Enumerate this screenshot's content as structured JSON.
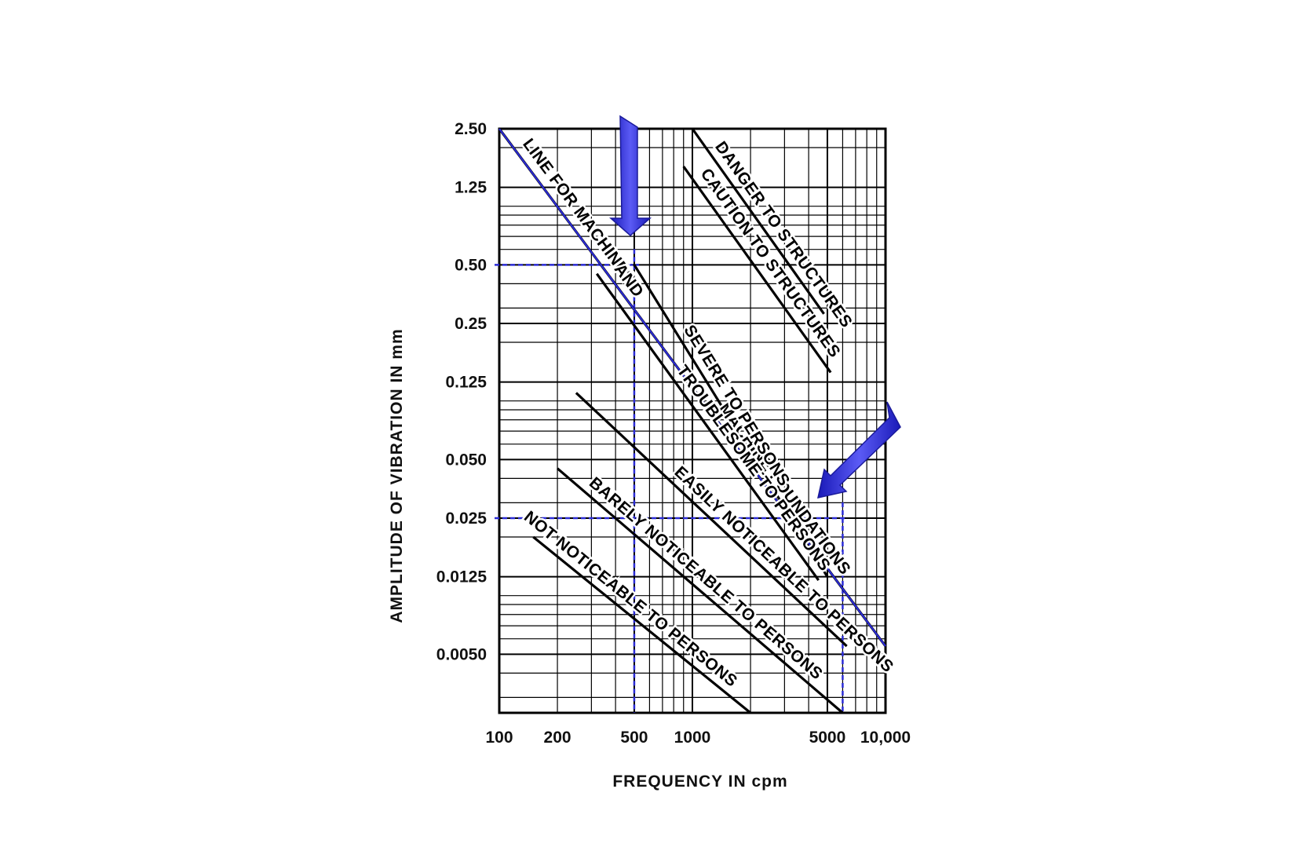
{
  "chart_data": {
    "type": "line",
    "title": "",
    "xlabel": "FREQUENCY IN cpm",
    "ylabel": "AMPLITUDE OF VIBRATION IN mm",
    "x_scale": "log",
    "y_scale": "log",
    "xlim": [
      100,
      10000
    ],
    "ylim": [
      0.0025,
      2.5
    ],
    "grid": true,
    "x_ticks": [
      {
        "value": 100,
        "label": "100"
      },
      {
        "value": 200,
        "label": "200"
      },
      {
        "value": 500,
        "label": "500"
      },
      {
        "value": 1000,
        "label": "1000"
      },
      {
        "value": 5000,
        "label": "5000"
      },
      {
        "value": 10000,
        "label": "10,000"
      }
    ],
    "y_ticks": [
      {
        "value": 2.5,
        "label": "2.50"
      },
      {
        "value": 1.25,
        "label": "1.25"
      },
      {
        "value": 0.5,
        "label": "0.50"
      },
      {
        "value": 0.25,
        "label": "0.25"
      },
      {
        "value": 0.125,
        "label": "0.125"
      },
      {
        "value": 0.05,
        "label": "0.050"
      },
      {
        "value": 0.025,
        "label": "0.025"
      },
      {
        "value": 0.0125,
        "label": "0.0125"
      },
      {
        "value": 0.005,
        "label": "0.0050"
      }
    ],
    "series": [
      {
        "name": "DANGER TO STRUCTURES",
        "points": [
          [
            1000,
            2.5
          ],
          [
            4800,
            0.28
          ]
        ]
      },
      {
        "name": "CAUTION TO STRUCTURES",
        "points": [
          [
            900,
            1.6
          ],
          [
            5200,
            0.14
          ]
        ]
      },
      {
        "name": "LINE FOR MACHINES AND MACHINE FOUNDATIONS",
        "points": [
          [
            100,
            2.5
          ],
          [
            10000,
            0.0055
          ]
        ]
      },
      {
        "name": "SEVERE TO PERSONS",
        "points": [
          [
            500,
            0.5
          ],
          [
            5000,
            0.0125
          ]
        ]
      },
      {
        "name": "TROUBLESOME TO PERSONS",
        "points": [
          [
            320,
            0.45
          ],
          [
            4500,
            0.012
          ]
        ]
      },
      {
        "name": "EASILY NOTICEABLE TO PERSONS",
        "points": [
          [
            250,
            0.11
          ],
          [
            6300,
            0.0055
          ]
        ]
      },
      {
        "name": "BARELY NOTICEABLE TO PERSONS",
        "points": [
          [
            200,
            0.045
          ],
          [
            6000,
            0.0025
          ]
        ]
      },
      {
        "name": "NOT NOTICEABLE TO PERSONS",
        "points": [
          [
            150,
            0.02
          ],
          [
            2000,
            0.0025
          ]
        ]
      }
    ],
    "reference_lines": [
      {
        "x": 500,
        "y": 0.5
      },
      {
        "x": 6000,
        "y": 0.025
      }
    ],
    "annotations": [
      {
        "text": "DANGER TO STRUCTURES",
        "series": 0
      },
      {
        "text": "CAUTION TO STRUCTURES",
        "series": 1
      },
      {
        "text": "LINE FOR MACHINES",
        "series": 2
      },
      {
        "text": "AND",
        "series": 2
      },
      {
        "text": "MACHINE FOUNDATIONS",
        "series": 2
      },
      {
        "text": "SEVERE TO PERSONS",
        "series": 3
      },
      {
        "text": "TROUBLESOME TO PERSONS",
        "series": 4
      },
      {
        "text": "EASILY NOTICEABLE TO PERSONS",
        "series": 5
      },
      {
        "text": "BARELY NOTICEABLE TO PERSONS",
        "series": 6
      },
      {
        "text": "NOT NOTICEABLE TO PERSONS",
        "series": 7
      }
    ],
    "colors": {
      "lines": "#000000",
      "highlight": "#2b2bd6",
      "grid": "#000000"
    }
  }
}
